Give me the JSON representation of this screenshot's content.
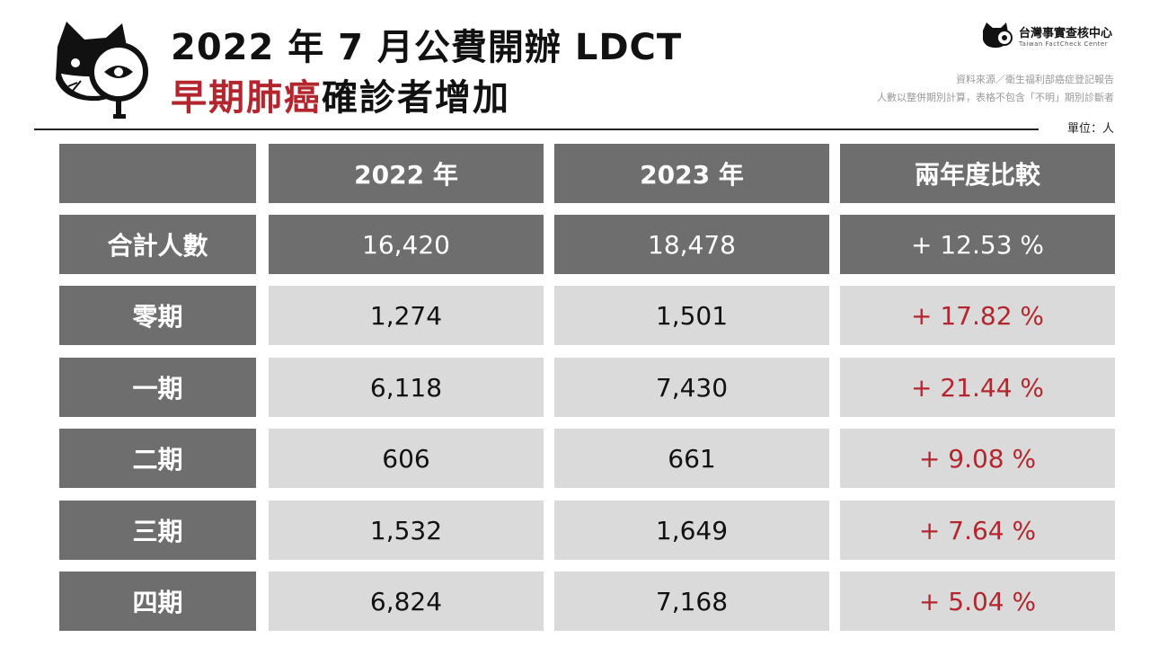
{
  "header": {
    "title_line1": "2022 年 7 月公費開辦 LDCT",
    "title_line2_highlight": "早期肺癌",
    "title_line2_rest": "確診者增加"
  },
  "brand": {
    "name": "台灣事實查核中心",
    "subtitle": "Taiwan FactCheck Center"
  },
  "notes": {
    "source": "資料來源／衛生福利部癌症登記報告",
    "method": "人數以整併期別計算，表格不包含「不明」期別診斷者",
    "unit": "單位：人"
  },
  "table": {
    "columns": [
      "",
      "2022 年",
      "2023 年",
      "兩年度比較"
    ],
    "rows": [
      {
        "label": "合計人數",
        "y2022": "16,420",
        "y2023": "18,478",
        "change": "+ 12.53 %"
      },
      {
        "label": "零期",
        "y2022": "1,274",
        "y2023": "1,501",
        "change": "+ 17.82 %"
      },
      {
        "label": "一期",
        "y2022": "6,118",
        "y2023": "7,430",
        "change": "+ 21.44 %"
      },
      {
        "label": "二期",
        "y2022": "606",
        "y2023": "661",
        "change": "+ 9.08 %"
      },
      {
        "label": "三期",
        "y2022": "1,532",
        "y2023": "1,649",
        "change": "+ 7.64 %"
      },
      {
        "label": "四期",
        "y2022": "6,824",
        "y2023": "7,168",
        "change": "+ 5.04 %"
      }
    ]
  },
  "colors": {
    "accent_red": "#b3262d",
    "header_gray": "#6e6e6e",
    "cell_gray": "#dadada"
  }
}
